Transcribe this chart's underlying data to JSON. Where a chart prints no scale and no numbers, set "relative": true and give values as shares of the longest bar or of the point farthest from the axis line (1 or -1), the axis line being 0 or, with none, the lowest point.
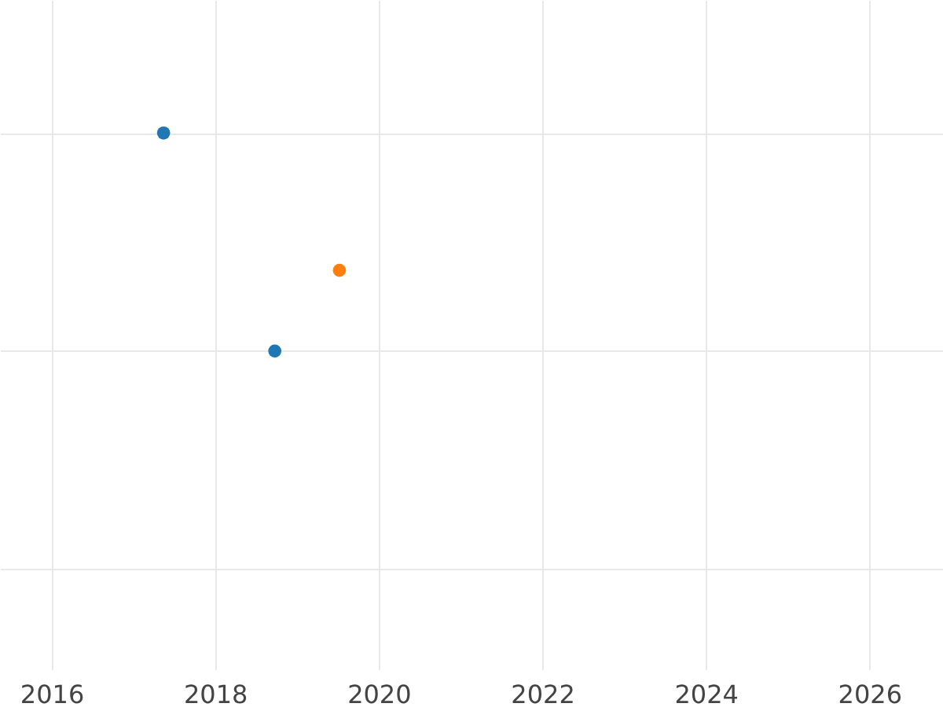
{
  "chart_data": {
    "type": "scatter",
    "relative": true,
    "xlim": [
      2015.37,
      2026.9
    ],
    "xticks": [
      2016,
      2018,
      2020,
      2022,
      2024,
      2026
    ],
    "grid": true,
    "marker": "circle",
    "series": [
      {
        "color": "#1f77b4",
        "x": [
          2017.37,
          2018.73
        ],
        "values": [
          1,
          0
        ]
      },
      {
        "color": "#ff7f0e",
        "x": [
          2019.52
        ],
        "values": [
          0.37
        ]
      }
    ]
  }
}
